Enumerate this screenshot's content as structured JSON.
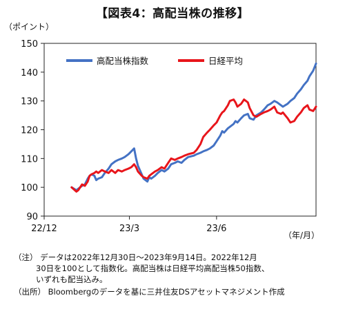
{
  "chart_data": {
    "type": "line",
    "title": "【図表4：高配当株の推移】",
    "ylabel": "（ポイント）",
    "xunit": "（年/月）",
    "ylim": [
      90,
      150
    ],
    "yticks": [
      90,
      100,
      110,
      120,
      130,
      140,
      150
    ],
    "xlim": [
      "2022-12-01",
      "2023-09-14"
    ],
    "xticks": [
      {
        "label": "22/12",
        "date": "2022-12-01"
      },
      {
        "label": "23/3",
        "date": "2023-03-01"
      },
      {
        "label": "23/6",
        "date": "2023-06-01"
      }
    ],
    "grid": false,
    "legend": "top-left",
    "series": [
      {
        "name": "高配当株指数",
        "color": "#4472C4",
        "points": [
          [
            "2022-12-30",
            100
          ],
          [
            "2023-01-04",
            99
          ],
          [
            "2023-01-06",
            99.5
          ],
          [
            "2023-01-10",
            100.5
          ],
          [
            "2023-01-13",
            101
          ],
          [
            "2023-01-16",
            103
          ],
          [
            "2023-01-18",
            104
          ],
          [
            "2023-01-20",
            104.5
          ],
          [
            "2023-01-23",
            104
          ],
          [
            "2023-01-25",
            102.5
          ],
          [
            "2023-01-27",
            103
          ],
          [
            "2023-01-31",
            103.5
          ],
          [
            "2023-02-03",
            105
          ],
          [
            "2023-02-07",
            106.5
          ],
          [
            "2023-02-10",
            108
          ],
          [
            "2023-02-14",
            109
          ],
          [
            "2023-02-17",
            109.5
          ],
          [
            "2023-02-21",
            110
          ],
          [
            "2023-02-24",
            110.5
          ],
          [
            "2023-02-28",
            111.5
          ],
          [
            "2023-03-03",
            112.5
          ],
          [
            "2023-03-06",
            113.5
          ],
          [
            "2023-03-08",
            110
          ],
          [
            "2023-03-10",
            107.5
          ],
          [
            "2023-03-14",
            104.5
          ],
          [
            "2023-03-16",
            103
          ],
          [
            "2023-03-20",
            102
          ],
          [
            "2023-03-22",
            103.5
          ],
          [
            "2023-03-24",
            103
          ],
          [
            "2023-03-28",
            104
          ],
          [
            "2023-03-31",
            105
          ],
          [
            "2023-04-04",
            106
          ],
          [
            "2023-04-07",
            105.5
          ],
          [
            "2023-04-11",
            106.5
          ],
          [
            "2023-04-14",
            108
          ],
          [
            "2023-04-18",
            108.5
          ],
          [
            "2023-04-21",
            109
          ],
          [
            "2023-04-25",
            108.5
          ],
          [
            "2023-04-28",
            109.5
          ],
          [
            "2023-05-02",
            110.5
          ],
          [
            "2023-05-08",
            111
          ],
          [
            "2023-05-11",
            111.5
          ],
          [
            "2023-05-15",
            112
          ],
          [
            "2023-05-18",
            112.5
          ],
          [
            "2023-05-22",
            113
          ],
          [
            "2023-05-25",
            113.5
          ],
          [
            "2023-05-29",
            114.5
          ],
          [
            "2023-06-01",
            116
          ],
          [
            "2023-06-05",
            118
          ],
          [
            "2023-06-07",
            119.5
          ],
          [
            "2023-06-09",
            119
          ],
          [
            "2023-06-13",
            120.5
          ],
          [
            "2023-06-15",
            121
          ],
          [
            "2023-06-19",
            122
          ],
          [
            "2023-06-21",
            123
          ],
          [
            "2023-06-23",
            122.5
          ],
          [
            "2023-06-27",
            124
          ],
          [
            "2023-06-30",
            125
          ],
          [
            "2023-07-04",
            125.5
          ],
          [
            "2023-07-06",
            124
          ],
          [
            "2023-07-10",
            123.5
          ],
          [
            "2023-07-13",
            125
          ],
          [
            "2023-07-18",
            126
          ],
          [
            "2023-07-21",
            127
          ],
          [
            "2023-07-25",
            128.5
          ],
          [
            "2023-07-28",
            129
          ],
          [
            "2023-08-01",
            130
          ],
          [
            "2023-08-04",
            129.5
          ],
          [
            "2023-08-08",
            128.5
          ],
          [
            "2023-08-10",
            128
          ],
          [
            "2023-08-15",
            129
          ],
          [
            "2023-08-18",
            130
          ],
          [
            "2023-08-22",
            131
          ],
          [
            "2023-08-25",
            132.5
          ],
          [
            "2023-08-29",
            134
          ],
          [
            "2023-09-01",
            135.5
          ],
          [
            "2023-09-05",
            137
          ],
          [
            "2023-09-07",
            138.5
          ],
          [
            "2023-09-11",
            140.5
          ],
          [
            "2023-09-14",
            143
          ]
        ]
      },
      {
        "name": "日経平均",
        "color": "#E8151B",
        "points": [
          [
            "2022-12-30",
            100
          ],
          [
            "2023-01-04",
            98.5
          ],
          [
            "2023-01-06",
            99
          ],
          [
            "2023-01-10",
            101
          ],
          [
            "2023-01-13",
            100.5
          ],
          [
            "2023-01-16",
            102
          ],
          [
            "2023-01-18",
            104
          ],
          [
            "2023-01-20",
            104.5
          ],
          [
            "2023-01-23",
            105
          ],
          [
            "2023-01-25",
            105.5
          ],
          [
            "2023-01-27",
            105
          ],
          [
            "2023-01-31",
            106
          ],
          [
            "2023-02-03",
            105.5
          ],
          [
            "2023-02-07",
            105
          ],
          [
            "2023-02-10",
            106
          ],
          [
            "2023-02-14",
            105
          ],
          [
            "2023-02-17",
            106
          ],
          [
            "2023-02-21",
            105.5
          ],
          [
            "2023-02-24",
            106
          ],
          [
            "2023-02-28",
            106.5
          ],
          [
            "2023-03-03",
            107
          ],
          [
            "2023-03-06",
            108
          ],
          [
            "2023-03-08",
            107
          ],
          [
            "2023-03-10",
            105.5
          ],
          [
            "2023-03-14",
            104
          ],
          [
            "2023-03-16",
            103.5
          ],
          [
            "2023-03-20",
            103
          ],
          [
            "2023-03-22",
            104
          ],
          [
            "2023-03-24",
            104.5
          ],
          [
            "2023-03-28",
            105.5
          ],
          [
            "2023-03-31",
            106
          ],
          [
            "2023-04-04",
            107
          ],
          [
            "2023-04-07",
            106.5
          ],
          [
            "2023-04-11",
            108.5
          ],
          [
            "2023-04-14",
            110
          ],
          [
            "2023-04-18",
            109.5
          ],
          [
            "2023-04-21",
            110
          ],
          [
            "2023-04-25",
            110.5
          ],
          [
            "2023-04-28",
            111
          ],
          [
            "2023-05-02",
            111.5
          ],
          [
            "2023-05-08",
            112
          ],
          [
            "2023-05-11",
            113
          ],
          [
            "2023-05-15",
            115
          ],
          [
            "2023-05-18",
            117.5
          ],
          [
            "2023-05-22",
            119
          ],
          [
            "2023-05-25",
            120
          ],
          [
            "2023-05-29",
            121.5
          ],
          [
            "2023-06-01",
            122.5
          ],
          [
            "2023-06-05",
            125
          ],
          [
            "2023-06-07",
            126
          ],
          [
            "2023-06-09",
            126.5
          ],
          [
            "2023-06-13",
            128.5
          ],
          [
            "2023-06-15",
            130
          ],
          [
            "2023-06-19",
            130.5
          ],
          [
            "2023-06-21",
            129.5
          ],
          [
            "2023-06-23",
            128
          ],
          [
            "2023-06-27",
            129
          ],
          [
            "2023-06-30",
            130.5
          ],
          [
            "2023-07-04",
            129.5
          ],
          [
            "2023-07-06",
            127.5
          ],
          [
            "2023-07-10",
            125
          ],
          [
            "2023-07-13",
            124.5
          ],
          [
            "2023-07-18",
            125.5
          ],
          [
            "2023-07-21",
            126
          ],
          [
            "2023-07-25",
            126.5
          ],
          [
            "2023-07-28",
            127
          ],
          [
            "2023-08-01",
            128
          ],
          [
            "2023-08-04",
            126
          ],
          [
            "2023-08-08",
            125.5
          ],
          [
            "2023-08-10",
            126
          ],
          [
            "2023-08-15",
            124
          ],
          [
            "2023-08-18",
            122.5
          ],
          [
            "2023-08-22",
            123
          ],
          [
            "2023-08-25",
            124.5
          ],
          [
            "2023-08-29",
            126
          ],
          [
            "2023-09-01",
            127.5
          ],
          [
            "2023-09-05",
            128.5
          ],
          [
            "2023-09-07",
            127
          ],
          [
            "2023-09-11",
            126.5
          ],
          [
            "2023-09-14",
            128
          ]
        ]
      }
    ]
  },
  "notes": {
    "line1": "（注） データは2022年12月30日～2023年9月14日。2022年12月",
    "line2": "30日を100として指数化。高配当株は日経平均高配当株50指数、",
    "line3": "いずれも配当込み。",
    "line4": "（出所） Bloombergのデータを基に三井住友DSアセットマネジメント作成"
  }
}
